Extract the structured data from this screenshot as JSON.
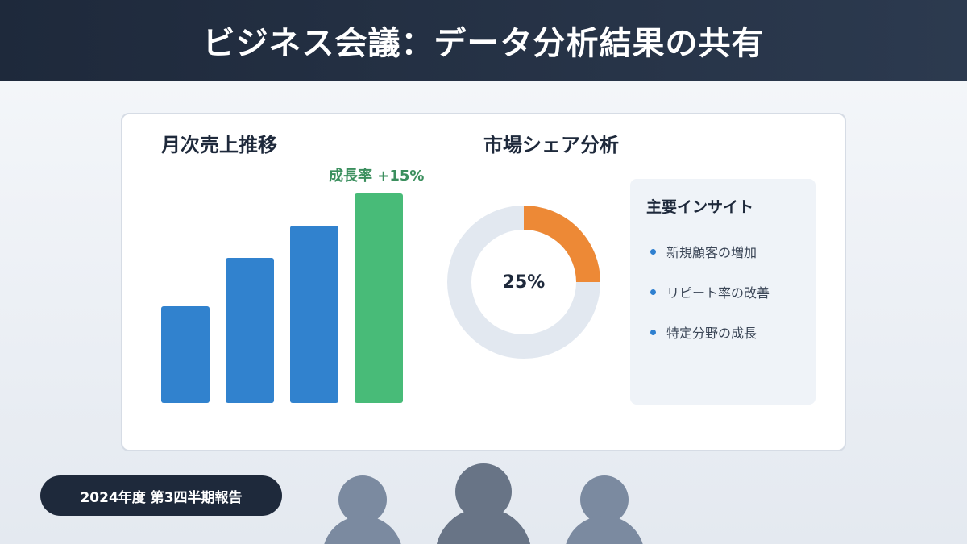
{
  "header": {
    "title": "ビジネス会議：データ分析結果の共有"
  },
  "sales": {
    "title": "月次売上推移",
    "growth_label": "成長率 +15%"
  },
  "market": {
    "title": "市場シェア分析",
    "center_label": "25%"
  },
  "insights": {
    "title": "主要インサイト",
    "items": [
      "新規顧客の増加",
      "リピート率の改善",
      "特定分野の成長"
    ]
  },
  "footer": {
    "badge": "2024年度 第3四半期報告"
  },
  "colors": {
    "bar": "#3182ce",
    "bar_highlight": "#48bb78",
    "donut_share": "#ed8936",
    "donut_rest": "#e2e8f0",
    "person_light": "#7b8aa0",
    "person_dark": "#687486"
  },
  "chart_data": [
    {
      "type": "bar",
      "title": "月次売上推移",
      "categories": [
        "",
        "",
        "",
        ""
      ],
      "values": [
        60,
        90,
        110,
        130
      ],
      "highlight_index": 3,
      "annotation": "成長率 +15%",
      "ylim": [
        0,
        130
      ],
      "grid": false
    },
    {
      "type": "pie",
      "title": "市場シェア分析",
      "values": [
        25,
        75
      ],
      "center_label": "25%",
      "donut": true
    }
  ]
}
